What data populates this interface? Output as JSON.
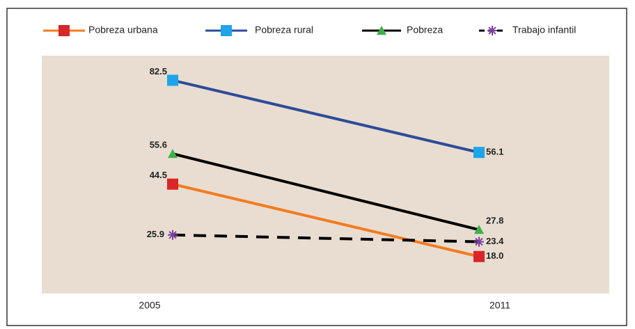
{
  "chart_data": {
    "type": "line",
    "categories": [
      "2005",
      "2011"
    ],
    "series": [
      {
        "name": "Pobreza urbana",
        "color": "#f47b20",
        "marker_color": "#d9262a",
        "marker": "square",
        "values": [
          44.5,
          18.0
        ],
        "value_labels": [
          "44.5",
          "18.0"
        ]
      },
      {
        "name": "Pobreza rural",
        "color": "#2e4b9b",
        "marker_color": "#1ea5e8",
        "marker": "square",
        "values": [
          82.5,
          56.1
        ]
      },
      {
        "name": "Pobreza",
        "color": "#000000",
        "marker_color": "#3db04b",
        "marker": "triangle",
        "values": [
          55.6,
          27.8
        ]
      },
      {
        "name": "Trabajo infantil",
        "color": "#000000",
        "marker_color": "#7b3fa0",
        "marker": "star",
        "dashed": true,
        "values": [
          25.9,
          23.4
        ]
      }
    ],
    "legend": "top"
  }
}
